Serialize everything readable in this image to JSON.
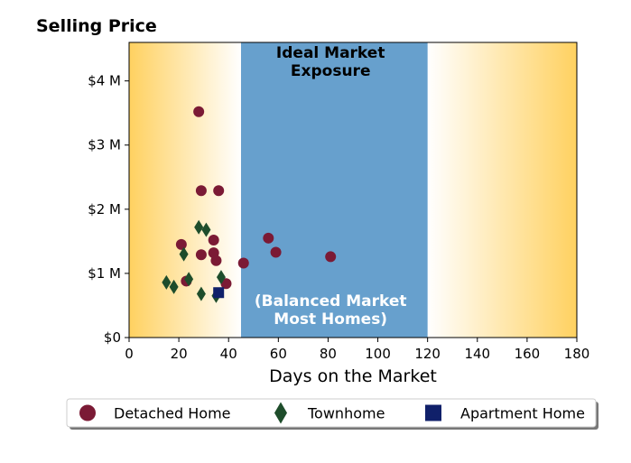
{
  "chart_data": {
    "type": "scatter",
    "title": "Selling Price",
    "xlabel": "Days on the Market",
    "ylabel": "",
    "xlim": [
      0,
      180
    ],
    "ylim": [
      0,
      4600000
    ],
    "x_ticks": [
      0,
      20,
      40,
      60,
      80,
      100,
      120,
      140,
      160,
      180
    ],
    "x_tick_labels": [
      "0",
      "20",
      "40",
      "60",
      "80",
      "100",
      "120",
      "140",
      "160",
      "180"
    ],
    "y_ticks": [
      0,
      1000000,
      2000000,
      3000000,
      4000000
    ],
    "y_tick_labels": [
      "$0",
      "$1 M",
      "$2 M",
      "$3 M",
      "$4 M"
    ],
    "grid": false,
    "legend_position": "bottom",
    "background": {
      "gradient_color": "#ffd160",
      "band": {
        "x0": 45,
        "x1": 120,
        "color": "#67a0cd"
      }
    },
    "annotations": [
      {
        "text_lines": [
          "Ideal Market",
          "Exposure"
        ],
        "x": 81,
        "style": "dark"
      },
      {
        "text_lines": [
          "(Balanced Market",
          "Most Homes)"
        ],
        "x": 81,
        "style": "light"
      }
    ],
    "series": [
      {
        "name": "Detached Home",
        "marker": "circle",
        "color": "#7b1a35",
        "points": [
          [
            28,
            3520000
          ],
          [
            29,
            2290000
          ],
          [
            36,
            2290000
          ],
          [
            21,
            1450000
          ],
          [
            34,
            1520000
          ],
          [
            56,
            1550000
          ],
          [
            34,
            1320000
          ],
          [
            29,
            1290000
          ],
          [
            59,
            1330000
          ],
          [
            81,
            1260000
          ],
          [
            35,
            1200000
          ],
          [
            46,
            1160000
          ],
          [
            23,
            880000
          ],
          [
            39,
            840000
          ]
        ]
      },
      {
        "name": "Townhome",
        "marker": "diamond",
        "color": "#1e4d2b",
        "points": [
          [
            28,
            1720000
          ],
          [
            31,
            1680000
          ],
          [
            22,
            1300000
          ],
          [
            37,
            940000
          ],
          [
            24,
            910000
          ],
          [
            15,
            860000
          ],
          [
            18,
            790000
          ],
          [
            29,
            680000
          ],
          [
            35,
            650000
          ]
        ]
      },
      {
        "name": "Apartment Home",
        "marker": "square",
        "color": "#10206a",
        "points": [
          [
            36,
            700000
          ]
        ]
      }
    ]
  }
}
